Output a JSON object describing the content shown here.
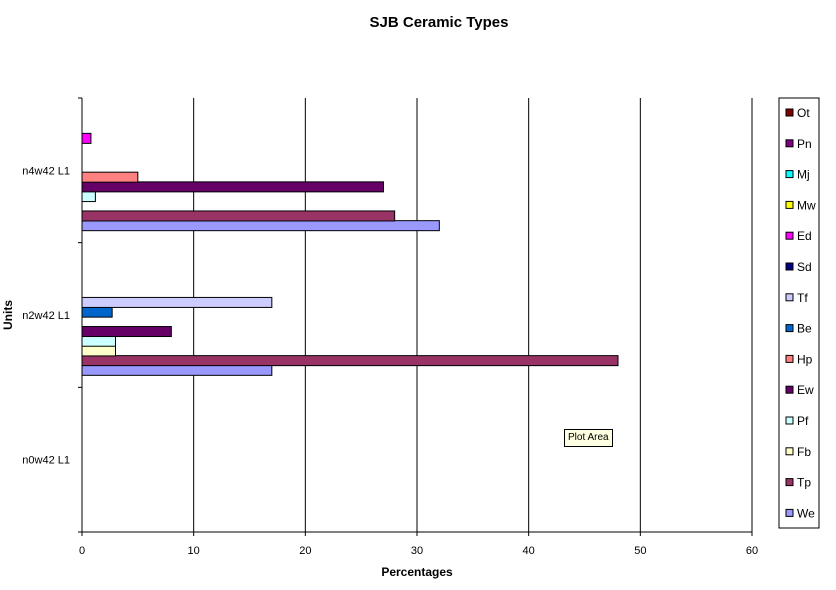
{
  "chart_data": {
    "type": "bar",
    "orientation": "horizontal",
    "title": "SJB Ceramic Types",
    "xlabel": "Percentages",
    "ylabel": "Units",
    "xlim": [
      0,
      60
    ],
    "xticks": [
      0,
      10,
      20,
      30,
      40,
      50,
      60
    ],
    "grid": true,
    "legend_position": "right",
    "categories": [
      "n0w42 L1",
      "n2w42 L1",
      "n4w42 L1"
    ],
    "series": [
      {
        "name": "We",
        "color": "#9999ff",
        "values": [
          0,
          17,
          32
        ]
      },
      {
        "name": "Tp",
        "color": "#993366",
        "values": [
          0,
          48,
          28
        ]
      },
      {
        "name": "Fb",
        "color": "#ffffcc",
        "values": [
          0,
          3,
          0
        ]
      },
      {
        "name": "Pf",
        "color": "#ccffff",
        "values": [
          0,
          3,
          1.2
        ]
      },
      {
        "name": "Ew",
        "color": "#660066",
        "values": [
          0,
          8,
          27
        ]
      },
      {
        "name": "Hp",
        "color": "#ff8080",
        "values": [
          0,
          0,
          5
        ]
      },
      {
        "name": "Be",
        "color": "#0066cc",
        "values": [
          0,
          2.7,
          0
        ]
      },
      {
        "name": "Tf",
        "color": "#ccccff",
        "values": [
          0,
          17,
          0
        ]
      },
      {
        "name": "Sd",
        "color": "#000080",
        "values": [
          0,
          0,
          0
        ]
      },
      {
        "name": "Ed",
        "color": "#ff00ff",
        "values": [
          0,
          0,
          0.8
        ]
      },
      {
        "name": "Mw",
        "color": "#ffff00",
        "values": [
          0,
          0,
          0
        ]
      },
      {
        "name": "Mj",
        "color": "#00ffff",
        "values": [
          0,
          0,
          0
        ]
      },
      {
        "name": "Pn",
        "color": "#800080",
        "values": [
          0,
          0,
          0
        ]
      },
      {
        "name": "Ot",
        "color": "#800000",
        "values": [
          0,
          0,
          0
        ]
      }
    ]
  },
  "tooltip": "Plot Area"
}
